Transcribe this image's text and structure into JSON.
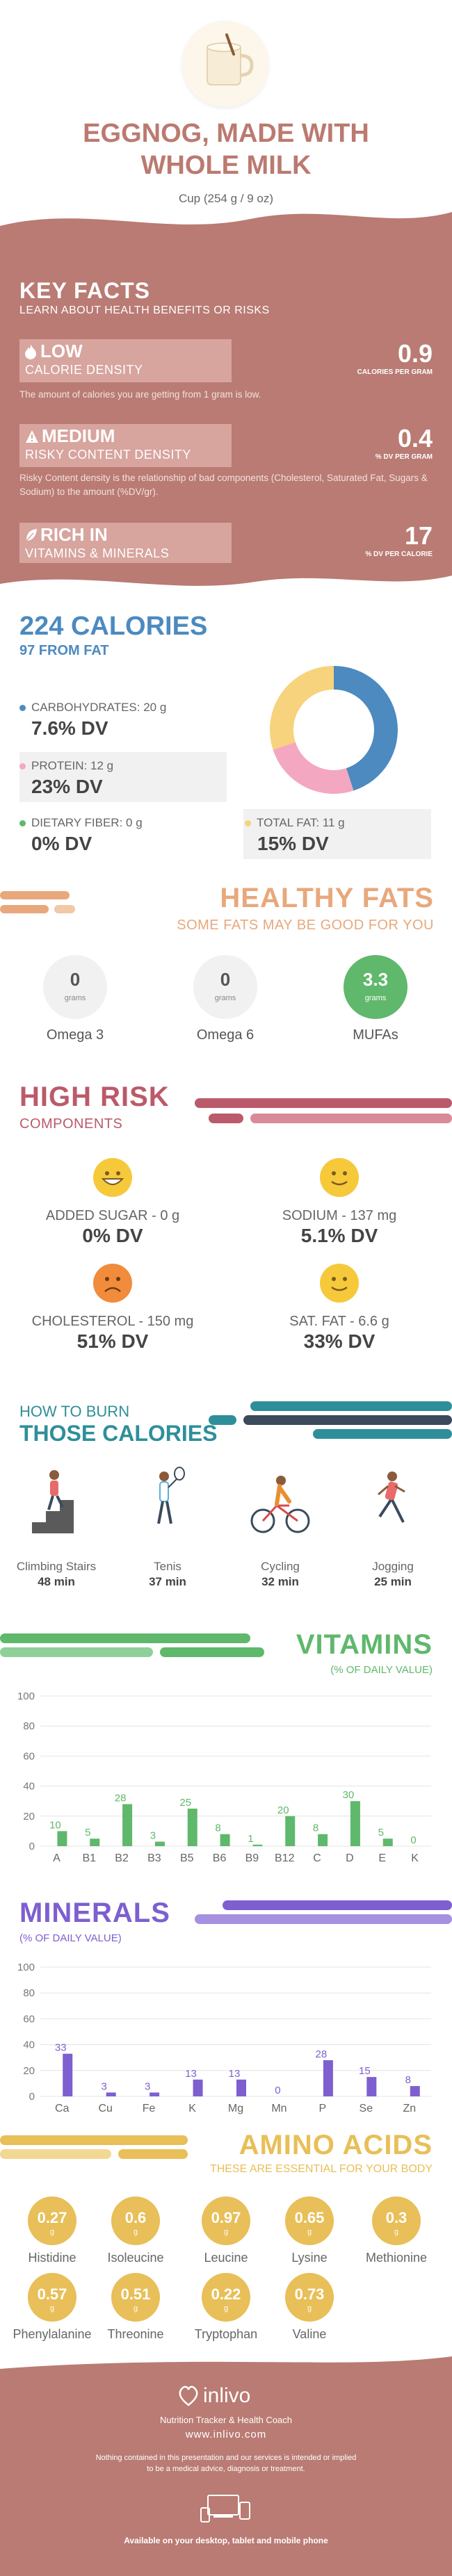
{
  "header": {
    "title_line1": "EGGNOG, MADE WITH",
    "title_line2": "WHOLE MILK",
    "serving": "Cup (254 g / 9 oz)",
    "icon": "eggnog-mug-icon"
  },
  "key_facts": {
    "title": "KEY FACTS",
    "subtitle": "LEARN ABOUT HEALTH BENEFITS OR RISKS",
    "calorie_density": {
      "level": "LOW",
      "label": "CALORIE DENSITY",
      "desc": "The amount of calories you are getting from 1 gram is low.",
      "value": "0.9",
      "unit": "CALORIES PER GRAM",
      "icon": "flame-icon"
    },
    "risky_content": {
      "level": "MEDIUM",
      "label": "RISKY CONTENT DENSITY",
      "desc": "Risky Content density is the relationship of bad components (Cholesterol, Saturated Fat, Sugars & Sodium) to the amount (%DV/gr).",
      "value": "0.4",
      "unit": "% DV PER GRAM",
      "icon": "warning-icon"
    },
    "vitamins": {
      "level": "RICH  IN",
      "label": "VITAMINS & MINERALS",
      "value": "17",
      "unit": "% DV PER CALORIE",
      "icon": "leaf-icon"
    }
  },
  "calories": {
    "title": "224 CALORIES",
    "from_fat": "97 FROM FAT",
    "carbs_label": "CARBOHYDRATES: 20 g",
    "carbs_dv": "7.6% DV",
    "protein_label": "PROTEIN: 12 g",
    "protein_dv": "23% DV",
    "fiber_label": "DIETARY FIBER: 0 g",
    "fiber_dv": "0% DV",
    "fat_label": "TOTAL FAT: 11 g",
    "fat_dv": "15% DV",
    "colors": {
      "carbs": "#4c8ac0",
      "protein": "#f4a7c0",
      "fiber": "#5fb86b",
      "fat": "#f6d37c"
    }
  },
  "chart_data": [
    {
      "type": "pie",
      "title": "",
      "donut": true,
      "categories": [
        "Carbohydrates",
        "Protein",
        "Total Fat"
      ],
      "values": [
        45,
        25,
        30
      ],
      "colors": [
        "#4c8ac0",
        "#f4a7c0",
        "#f6d37c"
      ]
    },
    {
      "type": "bar",
      "title": "VITAMINS",
      "categories": [
        "A",
        "B1",
        "B2",
        "B3",
        "B5",
        "B6",
        "B9",
        "B12",
        "C",
        "D",
        "E",
        "K"
      ],
      "values": [
        10,
        5,
        28,
        3,
        25,
        8,
        1,
        20,
        8,
        30,
        5,
        0
      ],
      "ylim": [
        0,
        100
      ],
      "yticks": [
        0,
        20,
        40,
        60,
        80,
        100
      ],
      "color": "#5fb86b"
    },
    {
      "type": "bar",
      "title": "MINERALS",
      "categories": [
        "Ca",
        "Cu",
        "Fe",
        "K",
        "Mg",
        "Mn",
        "P",
        "Se",
        "Zn"
      ],
      "values": [
        33,
        3,
        3,
        13,
        13,
        0,
        28,
        15,
        8
      ],
      "ylim": [
        0,
        100
      ],
      "yticks": [
        0,
        20,
        40,
        60,
        80,
        100
      ],
      "color": "#7d5fd0"
    }
  ],
  "fats": {
    "title": "HEALTHY FATS",
    "subtitle": "SOME FATS MAY BE GOOD FOR YOU",
    "items": [
      {
        "value": "0",
        "unit": "grams",
        "name": "Omega 3"
      },
      {
        "value": "0",
        "unit": "grams",
        "name": "Omega 6"
      },
      {
        "value": "3.3",
        "unit": "grams",
        "name": "MUFAs"
      }
    ]
  },
  "risk": {
    "title": "HIGH RISK",
    "subtitle": "COMPONENTS",
    "items": [
      {
        "label": "ADDED SUGAR - 0 g",
        "dv": "0% DV",
        "face": "laughing-face-icon"
      },
      {
        "label": "SODIUM - 137 mg",
        "dv": "5.1% DV",
        "face": "smiling-face-icon"
      },
      {
        "label": "CHOLESTEROL - 150 mg",
        "dv": "51% DV",
        "face": "sad-face-icon"
      },
      {
        "label": "SAT. FAT - 6.6 g",
        "dv": "33% DV",
        "face": "smiling-face-icon"
      }
    ]
  },
  "burn": {
    "title_line1": "HOW TO BURN",
    "title_line2": "THOSE CALORIES",
    "items": [
      {
        "name": "Climbing Stairs",
        "minutes": "48 min",
        "icon": "stairs-climber-icon"
      },
      {
        "name": "Tenis",
        "minutes": "37 min",
        "icon": "tennis-player-icon"
      },
      {
        "name": "Cycling",
        "minutes": "32 min",
        "icon": "cyclist-icon"
      },
      {
        "name": "Jogging",
        "minutes": "25 min",
        "icon": "jogger-icon"
      }
    ]
  },
  "vitamins": {
    "title": "VITAMINS",
    "subtitle": "(% OF DAILY VALUE)"
  },
  "minerals": {
    "title": "MINERALS",
    "subtitle": "(% OF DAILY VALUE)"
  },
  "amino": {
    "title": "AMINO ACIDS",
    "subtitle": "THESE ARE ESSENTIAL FOR YOUR BODY",
    "unit": "g",
    "items": [
      {
        "value": "0.27",
        "name": "Histidine"
      },
      {
        "value": "0.6",
        "name": "Isoleucine"
      },
      {
        "value": "0.97",
        "name": "Leucine"
      },
      {
        "value": "0.65",
        "name": "Lysine"
      },
      {
        "value": "0.3",
        "name": "Methionine"
      },
      {
        "value": "0.57",
        "name": "Phenylalanine"
      },
      {
        "value": "0.51",
        "name": "Threonine"
      },
      {
        "value": "0.22",
        "name": "Tryptophan"
      },
      {
        "value": "0.73",
        "name": "Valine"
      }
    ]
  },
  "footer": {
    "brand": "inlivo",
    "tagline": "Nutrition Tracker & Health Coach",
    "url": "www.inlivo.com",
    "disclaimer_line1": "Nothing contained in this presentation and our services is intended or implied",
    "disclaimer_line2": "to be a medical advice, diagnosis or treatment.",
    "available": "Available on your desktop, tablet and mobile phone",
    "icon": "devices-icon"
  }
}
